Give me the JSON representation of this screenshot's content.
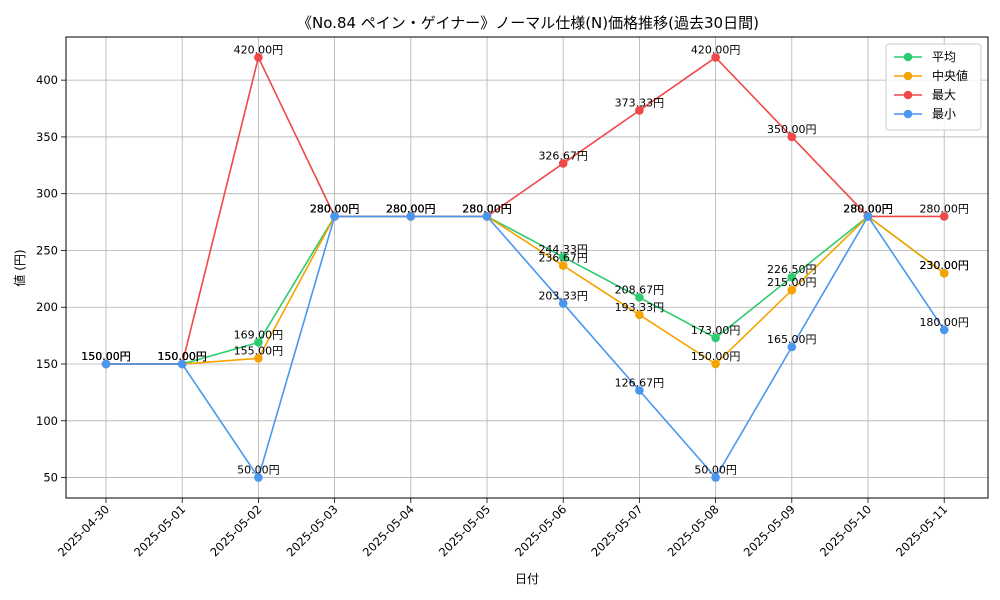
{
  "chart_data": {
    "type": "line",
    "title": "《No.84 ペイン・ゲイナー》ノーマル仕様(N)価格推移(過去30日間)",
    "xlabel": "日付",
    "ylabel": "値 (円)",
    "ylim": [
      32,
      438
    ],
    "yticks": [
      50,
      100,
      150,
      200,
      250,
      300,
      350,
      400
    ],
    "grid": true,
    "legend_position": "top-right",
    "label_suffix": "円",
    "categories": [
      "2025-04-30",
      "2025-05-01",
      "2025-05-02",
      "2025-05-03",
      "2025-05-04",
      "2025-05-05",
      "2025-05-06",
      "2025-05-07",
      "2025-05-08",
      "2025-05-09",
      "2025-05-10",
      "2025-05-11"
    ],
    "series": [
      {
        "name": "平均",
        "color": "#2ecc71",
        "values": [
          150,
          150,
          169,
          280,
          280,
          280,
          244.33,
          208.67,
          173,
          226.5,
          280,
          230
        ]
      },
      {
        "name": "中央値",
        "color": "#f5a300",
        "values": [
          150,
          150,
          155,
          280,
          280,
          280,
          236.67,
          193.33,
          150,
          215,
          280,
          230
        ]
      },
      {
        "name": "最大",
        "color": "#f04848",
        "values": [
          150,
          150,
          420,
          280,
          280,
          280,
          326.67,
          373.33,
          420,
          350,
          280,
          280
        ]
      },
      {
        "name": "最小",
        "color": "#4a97f0",
        "values": [
          150,
          150,
          50,
          280,
          280,
          280,
          203.33,
          126.67,
          50,
          165,
          280,
          180
        ]
      }
    ]
  }
}
